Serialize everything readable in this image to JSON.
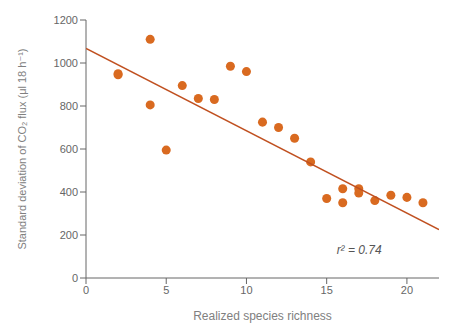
{
  "chart_data": {
    "type": "scatter",
    "xlabel": "Realized species richness",
    "ylabel": "Standard deviation of CO₂ flux (μl 18 h⁻¹)",
    "annotation": "r² = 0.74",
    "xlim": [
      0,
      22
    ],
    "xticks": [
      0,
      5,
      10,
      15,
      20
    ],
    "ylim": [
      0,
      1200
    ],
    "yticks": [
      0,
      200,
      400,
      600,
      800,
      1000,
      1200
    ],
    "grid": false,
    "series": [
      {
        "type": "scatter",
        "color": "#d96a20",
        "x": [
          2,
          2,
          4,
          4,
          5,
          6,
          7,
          8,
          9,
          10,
          11,
          12,
          13,
          14,
          15,
          16,
          16,
          17,
          17,
          18,
          19,
          20,
          21
        ],
        "values": [
          950,
          945,
          1110,
          805,
          595,
          895,
          835,
          830,
          985,
          960,
          725,
          700,
          650,
          540,
          370,
          350,
          415,
          415,
          395,
          360,
          385,
          375,
          350
        ]
      },
      {
        "type": "line",
        "color": "#c05020",
        "x": [
          0,
          22
        ],
        "values": [
          1068,
          225
        ]
      }
    ]
  }
}
